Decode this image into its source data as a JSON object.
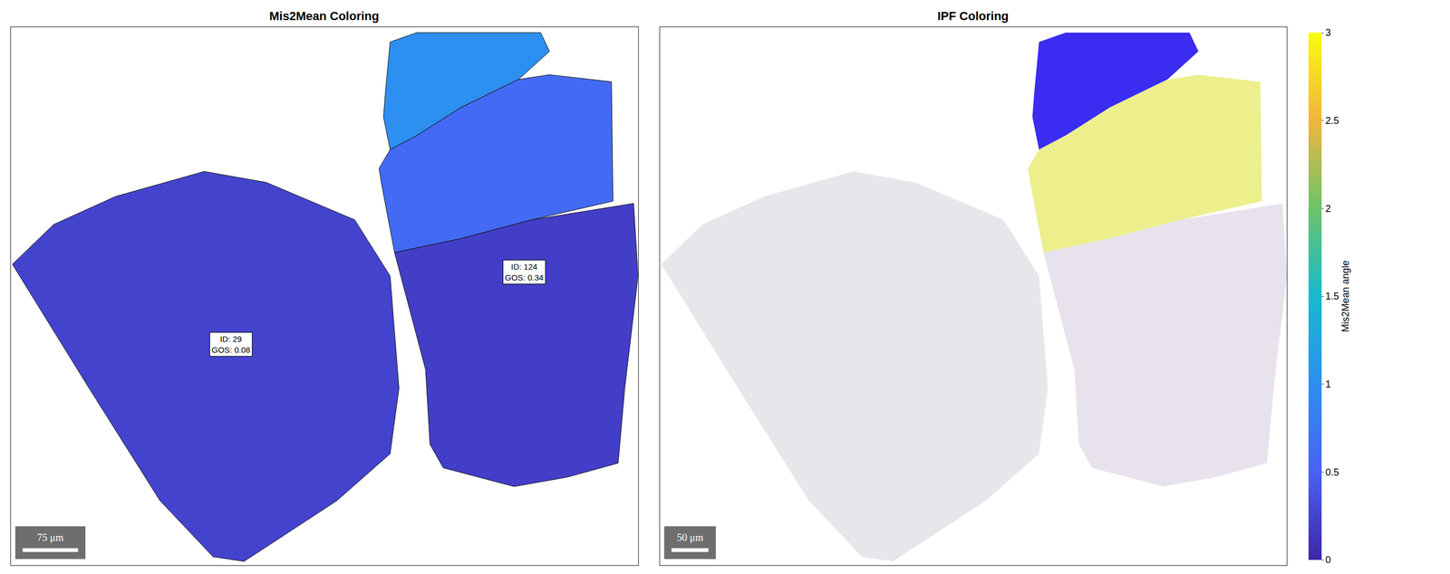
{
  "chart_data": [
    {
      "type": "map",
      "title": "Mis2Mean Coloring",
      "xlim": [
        0,
        850
      ],
      "ylim": [
        690,
        0
      ],
      "tick_labels": false,
      "grains": [
        {
          "x": [
            2,
            58,
            142,
            262,
            346,
            466,
            514,
            526,
            514,
            442,
            316,
            274,
            202,
            106
          ],
          "y": [
            304,
            253,
            217,
            185,
            199,
            247,
            319,
            463,
            547,
            607,
            685,
            679,
            607,
            463
          ],
          "mis2mean": 0.25
        },
        {
          "x": [
            508,
            514,
            550,
            718,
            730,
            688,
            610,
            550,
            514,
            505
          ],
          "y": [
            79,
            19,
            7,
            7,
            31,
            67,
            103,
            139,
            157,
            115
          ],
          "mis2mean": 1.0
        },
        {
          "x": [
            514,
            550,
            610,
            688,
            730,
            814,
            816,
            706,
            610,
            520,
            502,
            499
          ],
          "y": [
            157,
            139,
            103,
            67,
            61,
            70,
            223,
            247,
            271,
            289,
            199,
            181
          ],
          "mis2mean": 0.6
        },
        {
          "x": [
            520,
            610,
            706,
            844,
            850,
            832,
            823,
            754,
            682,
            586,
            568,
            562
          ],
          "y": [
            289,
            271,
            247,
            226,
            319,
            463,
            559,
            577,
            589,
            565,
            535,
            439
          ],
          "mis2mean": 0.2
        }
      ],
      "annotations": [
        {
          "x": 298,
          "y": 407,
          "lines": [
            "ID: 29",
            "GOS: 0.08"
          ]
        },
        {
          "x": 696,
          "y": 314,
          "lines": [
            "ID: 124",
            "GOS: 0.34"
          ]
        }
      ],
      "scale_bar": {
        "length": 75,
        "label": "75 μm"
      },
      "colorbar": {
        "label": "Mis2Mean angle",
        "range": [
          0,
          3
        ],
        "ticks": [
          0,
          0.5,
          1,
          1.5,
          2,
          2.5,
          3
        ]
      }
    },
    {
      "type": "map",
      "title": "IPF Coloring",
      "xlim": [
        0,
        850
      ],
      "ylim": [
        690,
        0
      ],
      "tick_labels": false,
      "grains": [
        {
          "x": [
            2,
            58,
            142,
            262,
            346,
            466,
            514,
            526,
            514,
            442,
            316,
            274,
            202,
            106
          ],
          "y": [
            304,
            253,
            217,
            185,
            199,
            247,
            319,
            463,
            547,
            607,
            685,
            679,
            607,
            463
          ],
          "color": "#e6e7ea"
        },
        {
          "x": [
            508,
            514,
            550,
            718,
            730,
            688,
            610,
            550,
            514,
            505
          ],
          "y": [
            79,
            19,
            7,
            7,
            31,
            67,
            103,
            139,
            157,
            115
          ],
          "color": "#3a2cf0"
        },
        {
          "x": [
            514,
            550,
            610,
            688,
            730,
            814,
            816,
            706,
            610,
            520,
            502,
            499
          ],
          "y": [
            157,
            139,
            103,
            67,
            61,
            70,
            223,
            247,
            271,
            289,
            199,
            181
          ],
          "color": "#ecef8c"
        },
        {
          "x": [
            520,
            610,
            706,
            844,
            850,
            832,
            823,
            754,
            682,
            586,
            568,
            562
          ],
          "y": [
            289,
            271,
            247,
            226,
            319,
            463,
            559,
            577,
            589,
            565,
            535,
            439
          ],
          "color": "#e8e2ec"
        }
      ],
      "scale_bar": {
        "length": 50,
        "label": "50 μm"
      }
    }
  ]
}
